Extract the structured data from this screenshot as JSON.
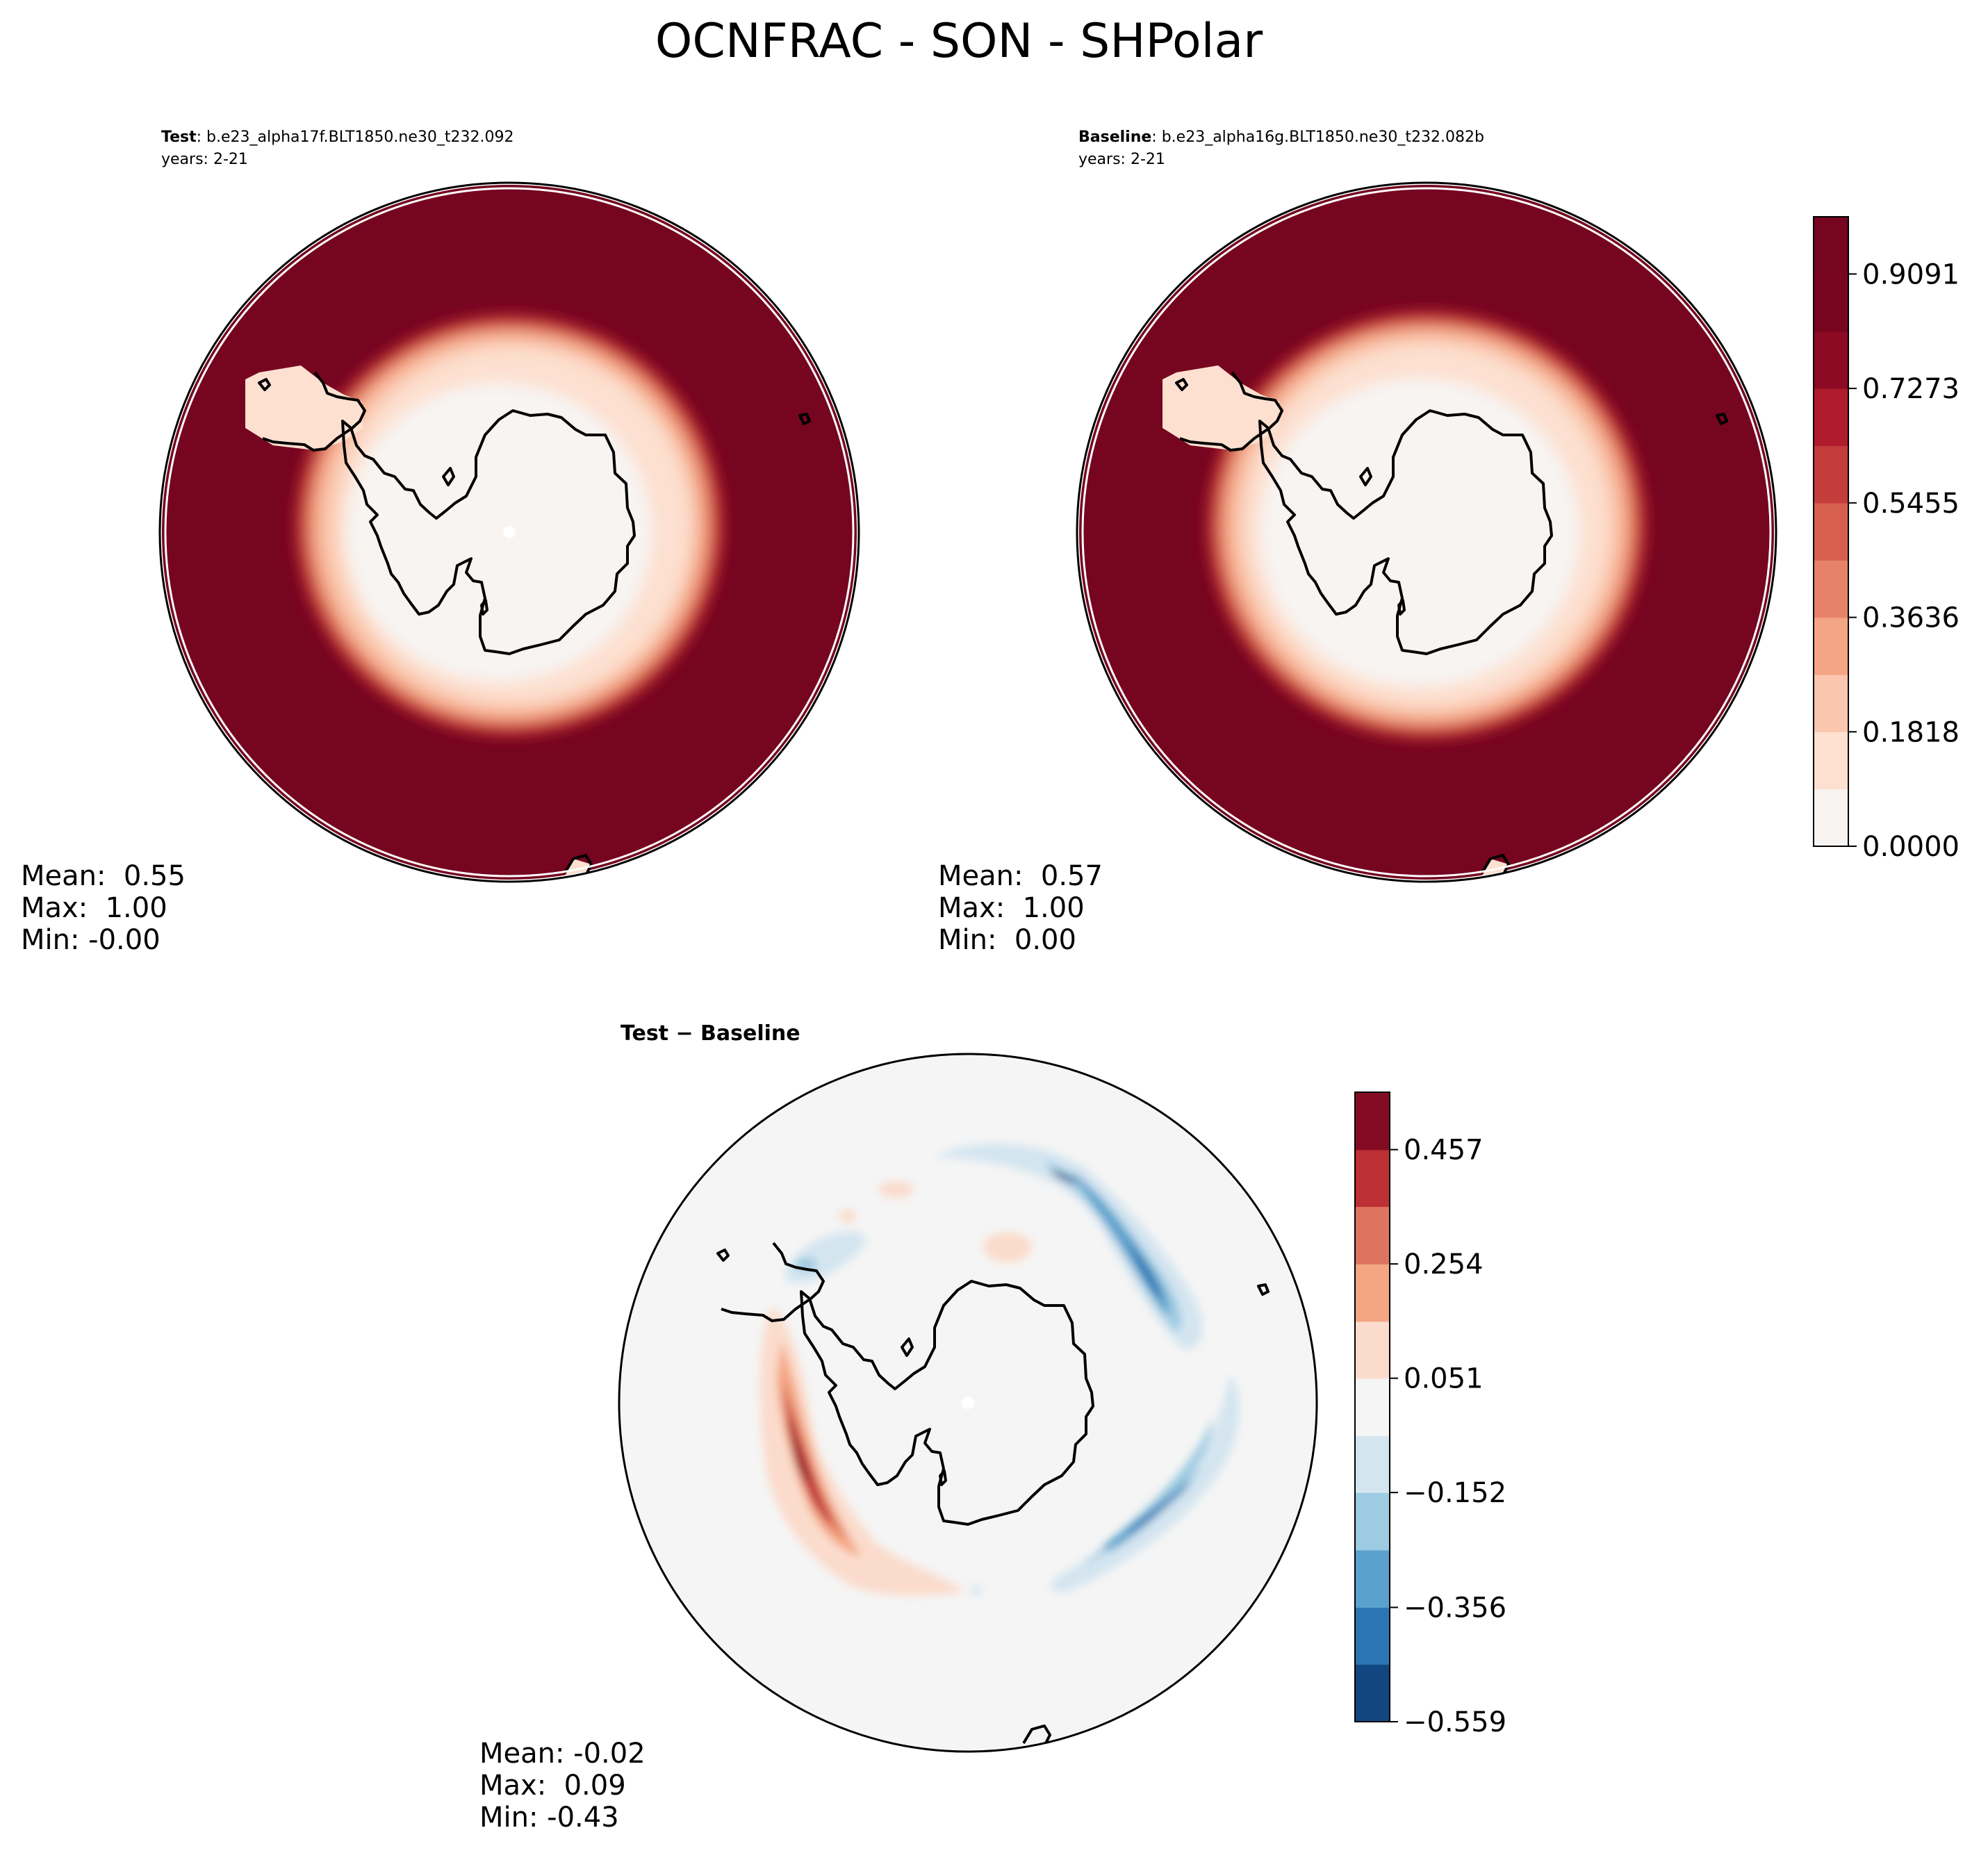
{
  "figure": {
    "title": "OCNFRAC - SON - SHPolar"
  },
  "panels": [
    {
      "id": "test",
      "label_bold": "Test",
      "case": ": b.e23_alpha17f.BLT1850.ne30_t232.092",
      "years": "years: 2-21",
      "stats": {
        "mean": "Mean:  0.55",
        "max": "Max:  1.00",
        "min": "Min: -0.00"
      }
    },
    {
      "id": "baseline",
      "label_bold": "Baseline",
      "case": ": b.e23_alpha16g.BLT1850.ne30_t232.082b",
      "years": "years: 2-21",
      "stats": {
        "mean": "Mean:  0.57",
        "max": "Max:  1.00",
        "min": "Min:  0.00"
      }
    },
    {
      "id": "diff",
      "label": "Test − Baseline",
      "stats": {
        "mean": "Mean: -0.02",
        "max": "Max:  0.09",
        "min": "Min: -0.43"
      }
    }
  ],
  "chart_data": [
    {
      "type": "heatmap",
      "projection": "south polar stereographic",
      "colormap": "RdBu_r",
      "levels": [
        0.0,
        0.0909,
        0.1818,
        0.2727,
        0.3636,
        0.4545,
        0.5455,
        0.6364,
        0.7273,
        0.8182,
        0.9091,
        1.0
      ],
      "level_colors": [
        "#f7f4f2",
        "#fde0d0",
        "#fac7ae",
        "#f4a584",
        "#e58267",
        "#d6604d",
        "#c43c3c",
        "#b01c2c",
        "#8c0a24",
        "#780520",
        "#760520"
      ],
      "colorbar_ticks": [
        "0.0000",
        "0.1818",
        "0.3636",
        "0.5455",
        "0.7273",
        "0.9091"
      ]
    },
    {
      "type": "heatmap",
      "projection": "south polar stereographic",
      "colormap": "RdBu_r",
      "levels": [
        -0.559,
        -0.457,
        -0.356,
        -0.254,
        -0.152,
        -0.051,
        0.051,
        0.152,
        0.254,
        0.356,
        0.457,
        0.559
      ],
      "level_colors": [
        "#124680",
        "#2c75b4",
        "#5aa1cd",
        "#9dcbe1",
        "#d4e5f0",
        "#f5f5f5",
        "#fbdccc",
        "#f4a683",
        "#de7460",
        "#bc2f34",
        "#830c24"
      ],
      "colorbar_ticks": [
        "−0.559",
        "−0.356",
        "−0.152",
        "0.051",
        "0.254",
        "0.457"
      ]
    }
  ]
}
